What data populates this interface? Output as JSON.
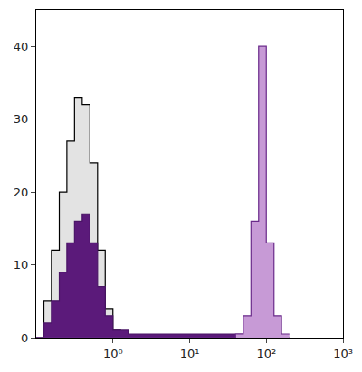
{
  "chart_data": {
    "type": "histogram",
    "bins": [
      0.1,
      0.126,
      0.158,
      0.2,
      0.251,
      0.316,
      0.398,
      0.501,
      0.631,
      0.794,
      1,
      1.26,
      1.58,
      2,
      2.51,
      3.16,
      3.98,
      5.01,
      6.31,
      7.94,
      10,
      12.6,
      15.8,
      20,
      25.1,
      31.6,
      39.8,
      50.1,
      63.1,
      79.4,
      100,
      126,
      158,
      200
    ],
    "series": [
      {
        "color": "#e3e3e3",
        "values": [
          0,
          5,
          12,
          20,
          27,
          33,
          32,
          24,
          12,
          4,
          1,
          0,
          0,
          0,
          0,
          0,
          0,
          0,
          0,
          0,
          0,
          0,
          0,
          0,
          0,
          0,
          0,
          0,
          0,
          0,
          0,
          0,
          0
        ]
      },
      {
        "color": "#5b1a7a",
        "values": [
          0,
          2,
          5,
          9,
          13,
          16,
          17,
          13,
          7,
          3,
          1,
          1,
          0.5,
          0.5,
          0.5,
          0.5,
          0.5,
          0.5,
          0.5,
          0.5,
          0.5,
          0.5,
          0.5,
          0.5,
          0.5,
          0.5,
          0.5,
          0,
          0,
          0,
          0,
          0,
          0
        ]
      },
      {
        "color": "#c79ad6",
        "values": [
          0,
          0,
          0,
          0,
          0,
          0,
          0,
          0,
          0,
          0,
          0,
          0,
          0,
          0,
          0,
          0,
          0,
          0,
          0,
          0,
          0,
          0,
          0,
          0,
          0,
          0,
          0.5,
          3,
          16,
          40,
          13,
          3,
          0.5
        ]
      }
    ],
    "log": "x",
    "xlim": [
      0.1,
      1000
    ],
    "xticks": [
      {
        "value": 1,
        "label": "10⁰"
      },
      {
        "value": 10,
        "label": "10¹"
      },
      {
        "value": 100,
        "label": "10²"
      },
      {
        "value": 1000,
        "label": "10³"
      }
    ],
    "ylim": [
      0,
      45
    ],
    "yticks": [
      0,
      10,
      20,
      30,
      40
    ],
    "grid": false
  }
}
